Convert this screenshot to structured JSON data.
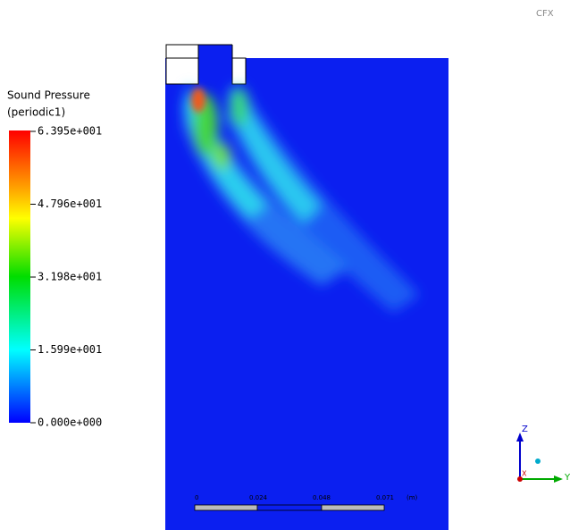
{
  "logo": "CFX",
  "legend": {
    "title": "Sound Pressure",
    "subtitle": "(periodic1)",
    "ticks": [
      "6.395e+001",
      "4.796e+001",
      "3.198e+001",
      "1.599e+001",
      "0.000e+000"
    ]
  },
  "scale_bar": {
    "labels": [
      "0",
      "0.024",
      "0.048",
      "0.071"
    ],
    "unit": "(m)"
  },
  "axes": {
    "z": "Z",
    "y": "Y",
    "x": "X"
  }
}
